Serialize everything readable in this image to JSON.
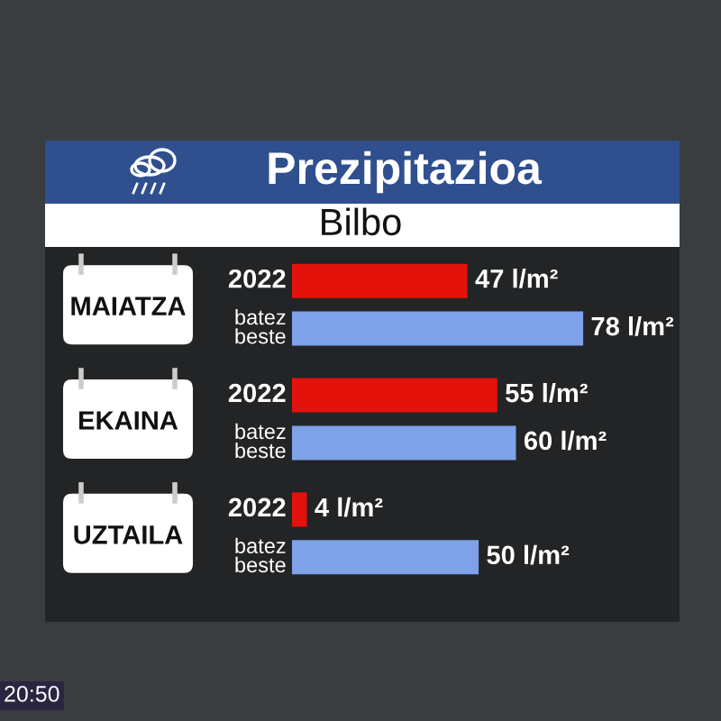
{
  "chart_data": {
    "type": "bar",
    "orientation": "horizontal",
    "title": "Prezipitazioa",
    "subtitle": "Bilbo",
    "categories": [
      "MAIATZA",
      "EKAINA",
      "UZTAILA"
    ],
    "series": [
      {
        "name": "2022",
        "color": "#e3120b",
        "values": [
          47,
          55,
          4
        ],
        "value_labels": [
          "47 l/m²",
          "55 l/m²",
          "4 l/m²"
        ]
      },
      {
        "name": "batez\nbeste",
        "color": "#7ea1e8",
        "values": [
          78,
          60,
          50
        ],
        "value_labels": [
          "78 l/m²",
          "60 l/m²",
          "50 l/m²"
        ]
      }
    ],
    "annotations": [
      "20:50"
    ],
    "legend": false
  }
}
